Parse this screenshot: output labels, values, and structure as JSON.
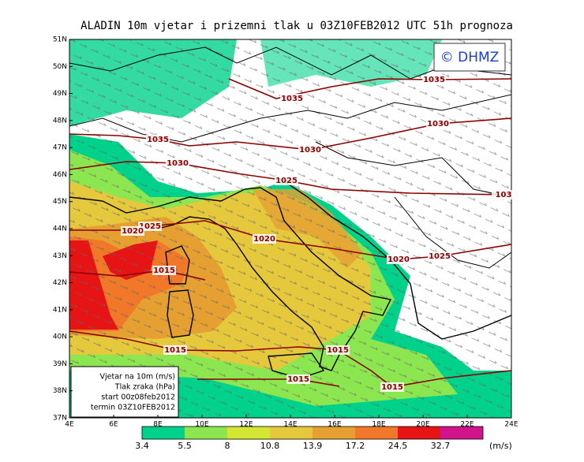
{
  "title": "ALADIN 10m vjetar i prizemni tlak u 03Z10FEB2012 UTC 51h prognoza",
  "logo": "© DHMZ",
  "lat_labels": [
    "51N",
    "50N",
    "49N",
    "48N",
    "47N",
    "46N",
    "45N",
    "44N",
    "43N",
    "42N",
    "41N",
    "40N",
    "39N",
    "38N",
    "37N"
  ],
  "lon_labels": [
    "4E",
    "6E",
    "8E",
    "10E",
    "12E",
    "14E",
    "16E",
    "18E",
    "20E",
    "22E",
    "24E"
  ],
  "isobar_labels": [
    "1035",
    "1035",
    "1030",
    "1035",
    "1030",
    "1030",
    "1025",
    "103",
    "1025",
    "1020",
    "1020",
    "1020",
    "1025",
    "1015",
    "1015",
    "1015",
    "1015",
    "1015"
  ],
  "info_box": [
    "Vjetar na 10m (m/s)",
    "Tlak zraka (hPa)",
    "start 00z08feb2012",
    "termin 03Z10FEB2012"
  ],
  "colorbar": {
    "values": [
      3.4,
      5.5,
      8,
      10.8,
      13.9,
      17.2,
      24.5,
      32.7
    ],
    "colors": [
      "#00d28c",
      "#8ce650",
      "#d2e632",
      "#e6c83c",
      "#e6a032",
      "#f07828",
      "#e61414",
      "#d2148c"
    ],
    "last_color": "#a014c8",
    "unit": "(m/s)"
  }
}
